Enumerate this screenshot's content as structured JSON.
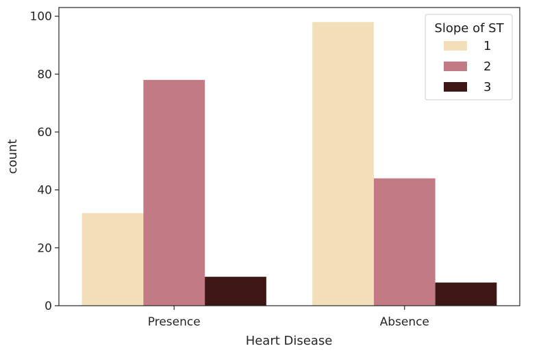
{
  "chart_data": {
    "type": "bar",
    "title": "",
    "xlabel": "Heart Disease",
    "ylabel": "count",
    "categories": [
      "Presence",
      "Absence"
    ],
    "series": [
      {
        "name": "1",
        "values": [
          32,
          98
        ],
        "color": "#f3e0bb"
      },
      {
        "name": "2",
        "values": [
          78,
          44
        ],
        "color": "#c27b84"
      },
      {
        "name": "3",
        "values": [
          10,
          8
        ],
        "color": "#3d1716"
      }
    ],
    "ylim": [
      0,
      103
    ],
    "yticks": [
      0,
      20,
      40,
      60,
      80,
      100
    ],
    "grid": false,
    "legend": {
      "title": "Slope of ST",
      "placement": "top-right"
    }
  }
}
